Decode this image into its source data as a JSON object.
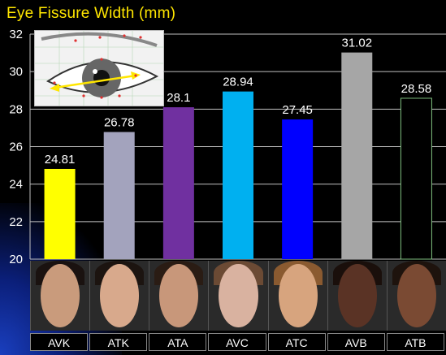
{
  "title": "Eye Fissure Width (mm)",
  "chart_data": {
    "type": "bar",
    "title": "Eye Fissure Width (mm)",
    "categories": [
      "AVK",
      "ATK",
      "ATA",
      "AVC",
      "ATC",
      "AVB",
      "ATB"
    ],
    "values": [
      24.81,
      26.78,
      28.1,
      28.94,
      27.45,
      31.02,
      28.58
    ],
    "value_labels": [
      "24.81",
      "26.78",
      "28.1",
      "28.94",
      "27.45",
      "31.02",
      "28.58"
    ],
    "colors": [
      "#ffff00",
      "#a3a3bd",
      "#7030a0",
      "#00b0f0",
      "#0000ff",
      "#a6a6a6",
      "#000000"
    ],
    "ylim": [
      20,
      32
    ],
    "yticks": [
      20,
      22,
      24,
      26,
      28,
      30,
      32
    ],
    "grid": true
  },
  "faces": [
    {
      "skin": "#c99b7c",
      "hair": "#1a1210"
    },
    {
      "skin": "#d8a98c",
      "hair": "#1c1410"
    },
    {
      "skin": "#c8977a",
      "hair": "#2a1c14"
    },
    {
      "skin": "#d9b2a0",
      "hair": "#6b4a34"
    },
    {
      "skin": "#d7a47e",
      "hair": "#8a5a30"
    },
    {
      "skin": "#5a3325",
      "hair": "#1a0f0b"
    },
    {
      "skin": "#7a4a33",
      "hair": "#1e130d"
    }
  ]
}
